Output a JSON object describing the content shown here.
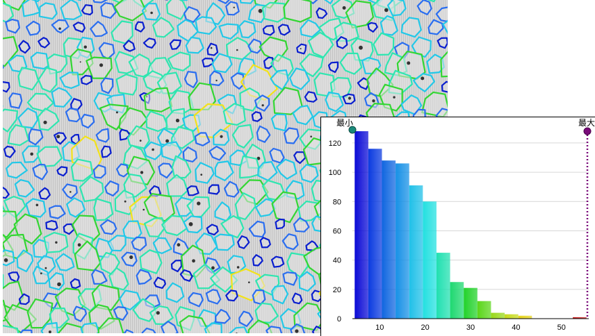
{
  "image_panel": {
    "description_colors": [
      "#0a1fcf",
      "#2a6ef0",
      "#22c8e8",
      "#2ee6b0",
      "#33d633",
      "#f2e21a"
    ],
    "background_color": "#cfcfcf"
  },
  "chart_data": {
    "type": "bar",
    "title": "",
    "xlabel": "",
    "ylabel": "",
    "x_ticks": [
      10,
      20,
      30,
      40,
      50
    ],
    "y_ticks": [
      0,
      20,
      40,
      60,
      80,
      100,
      120
    ],
    "xlim": [
      4,
      56
    ],
    "ylim": [
      0,
      128
    ],
    "bin_width": 3,
    "bins": [
      {
        "x": 6,
        "value": 128,
        "color": "#0a0ad6"
      },
      {
        "x": 9,
        "value": 116,
        "color": "#0a3ae0"
      },
      {
        "x": 12,
        "value": 108,
        "color": "#0f66e0"
      },
      {
        "x": 15,
        "value": 106,
        "color": "#1690e6"
      },
      {
        "x": 18,
        "value": 91,
        "color": "#1fc0e8"
      },
      {
        "x": 21,
        "value": 80,
        "color": "#22e0e0"
      },
      {
        "x": 24,
        "value": 45,
        "color": "#20e0b0"
      },
      {
        "x": 27,
        "value": 25,
        "color": "#1ed870"
      },
      {
        "x": 30,
        "value": 21,
        "color": "#22d22a"
      },
      {
        "x": 33,
        "value": 12,
        "color": "#5ad61a"
      },
      {
        "x": 36,
        "value": 4,
        "color": "#98d81a"
      },
      {
        "x": 39,
        "value": 3,
        "color": "#c6da18"
      },
      {
        "x": 42,
        "value": 2,
        "color": "#e6d41a"
      },
      {
        "x": 45,
        "value": 0,
        "color": "#e8a01a"
      },
      {
        "x": 48,
        "value": 0,
        "color": "#e86a1a"
      },
      {
        "x": 51,
        "value": 0,
        "color": "#e03a1a"
      },
      {
        "x": 54,
        "value": 1,
        "color": "#c81a1a"
      }
    ],
    "markers": {
      "min": {
        "label": "最小",
        "x": 4,
        "color": "#1a8a7a"
      },
      "max": {
        "label": "最大",
        "x": 56,
        "color": "#7a0a7a"
      }
    },
    "grid": true,
    "legend": "none"
  }
}
